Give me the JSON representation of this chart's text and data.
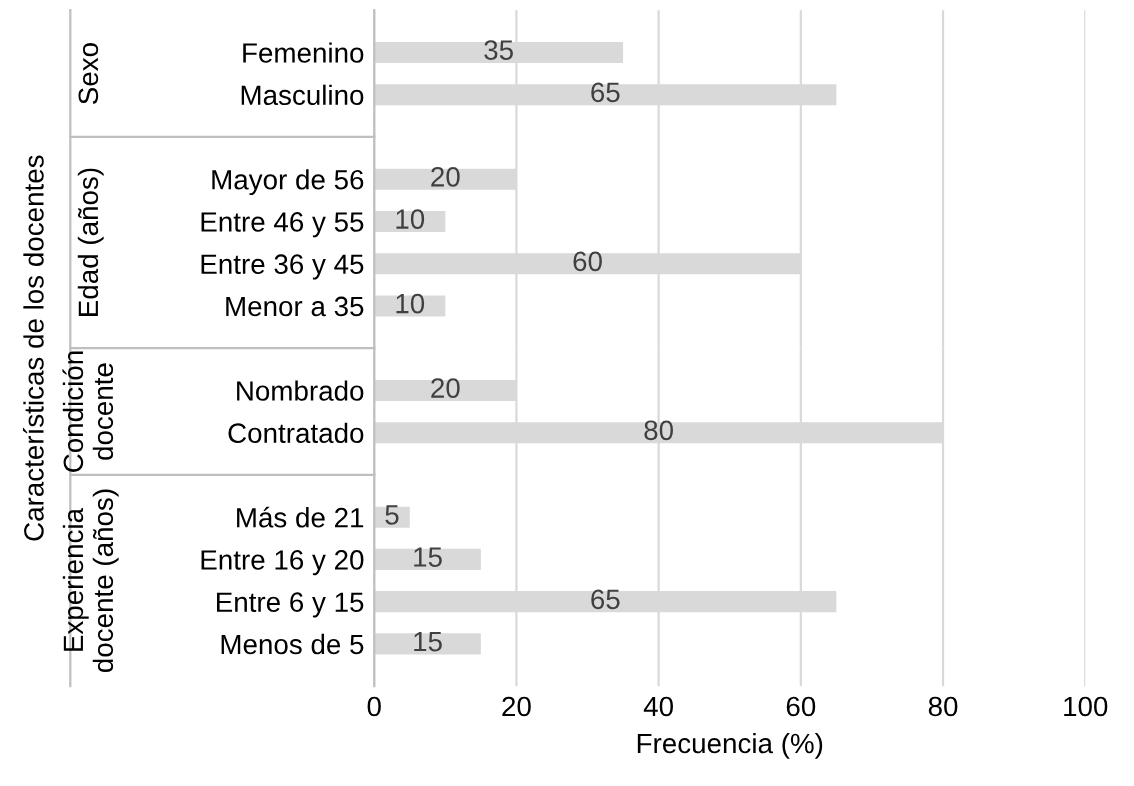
{
  "chart_data": [
    {
      "type": "bar",
      "orientation": "horizontal",
      "ylabel": "Sexo",
      "annotations": [
        "Características de los docentes"
      ],
      "categories": [
        "Femenino",
        "Masculino"
      ],
      "values": [
        35,
        65
      ],
      "color": "#d9d9d9",
      "xlim": [
        0,
        100
      ],
      "xticks": [
        0,
        20,
        40,
        60,
        80,
        100
      ],
      "grid": "x",
      "data_labels": true,
      "tick_labels": "y"
    },
    {
      "type": "bar",
      "orientation": "horizontal",
      "ylabel": "Edad (años)",
      "categories": [
        "Mayor de 56",
        "Entre 46 y 55",
        "Entre 36 y 45",
        "Menor a 35"
      ],
      "values": [
        20,
        10,
        60,
        10
      ],
      "color": "#d9d9d9",
      "xlim": [
        0,
        100
      ],
      "xticks": [
        0,
        20,
        40,
        60,
        80,
        100
      ],
      "grid": "x",
      "data_labels": true,
      "tick_labels": "y"
    },
    {
      "type": "bar",
      "orientation": "horizontal",
      "ylabel": "Condición\ndocente",
      "categories": [
        "Nombrado",
        "Contratado"
      ],
      "values": [
        20,
        80
      ],
      "color": "#d9d9d9",
      "xlim": [
        0,
        100
      ],
      "xticks": [
        0,
        20,
        40,
        60,
        80,
        100
      ],
      "grid": "x",
      "data_labels": true,
      "tick_labels": "y"
    },
    {
      "type": "bar",
      "orientation": "horizontal",
      "ylabel": "Experiencia\ndocente (años)",
      "xlabel": "Frecuencia (%)",
      "categories": [
        "Más de 21",
        "Entre 16 y 20",
        "Entre 6 y 15",
        "Menos de 5"
      ],
      "values": [
        5,
        15,
        65,
        15
      ],
      "color": "#d9d9d9",
      "xlim": [
        0,
        100
      ],
      "xticks": [
        0,
        20,
        40,
        60,
        80,
        100
      ],
      "grid": "x",
      "data_labels": true
    }
  ]
}
